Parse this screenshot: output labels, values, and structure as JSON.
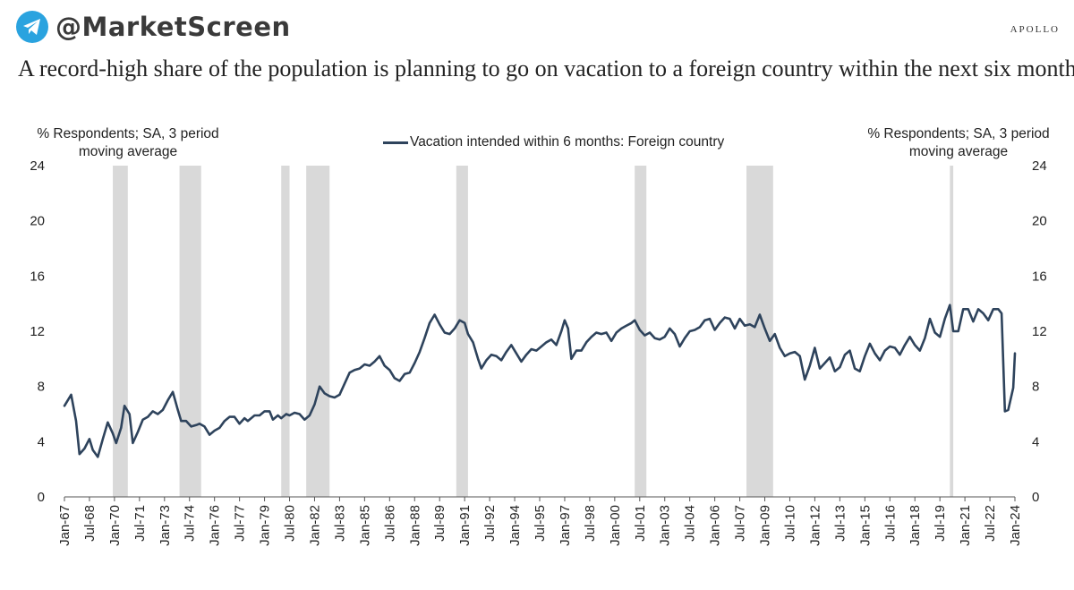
{
  "header": {
    "brand": "@MarketScreen",
    "brand_icon": "telegram-icon",
    "publisher": "APOLLO",
    "headline": "A record-high share of the population is planning to go on vacation to a foreign country within the next six months"
  },
  "colors": {
    "line": "#2e435c",
    "recession": "#d9d9d9",
    "brand_icon": "#2aa3df"
  },
  "chart_data": {
    "type": "line",
    "title": "A record-high share of the population is planning to go on vacation to a foreign country within the next six months",
    "left_axis_label": "% Respondents; SA, 3 period moving average",
    "right_axis_label": "% Respondents; SA, 3 period moving average",
    "ylim": [
      0,
      24
    ],
    "yticks": [
      0,
      4,
      8,
      12,
      16,
      20,
      24
    ],
    "x_range": [
      1967.0,
      2024.0
    ],
    "xtick_labels": [
      "Jan-67",
      "Jul-68",
      "Jan-70",
      "Jul-71",
      "Jan-73",
      "Jul-74",
      "Jan-76",
      "Jul-77",
      "Jan-79",
      "Jul-80",
      "Jan-82",
      "Jul-83",
      "Jan-85",
      "Jul-86",
      "Jan-88",
      "Jul-89",
      "Jan-91",
      "Jul-92",
      "Jan-94",
      "Jul-95",
      "Jan-97",
      "Jul-98",
      "Jan-00",
      "Jul-01",
      "Jan-03",
      "Jul-04",
      "Jan-06",
      "Jul-07",
      "Jan-09",
      "Jul-10",
      "Jan-12",
      "Jul-13",
      "Jan-15",
      "Jul-16",
      "Jan-18",
      "Jul-19",
      "Jan-21",
      "Jul-22",
      "Jan-24"
    ],
    "recessions": [
      [
        1969.9,
        1970.8
      ],
      [
        1973.9,
        1975.2
      ],
      [
        1980.0,
        1980.5
      ],
      [
        1981.5,
        1982.9
      ],
      [
        1990.5,
        1991.2
      ],
      [
        2001.2,
        2001.9
      ],
      [
        2007.9,
        2009.5
      ],
      [
        2020.1,
        2020.3
      ]
    ],
    "series": [
      {
        "name": "Vacation intended within 6 months: Foreign country",
        "points": [
          [
            1967.0,
            6.6
          ],
          [
            1967.4,
            7.4
          ],
          [
            1967.7,
            5.5
          ],
          [
            1967.9,
            3.1
          ],
          [
            1968.2,
            3.5
          ],
          [
            1968.5,
            4.2
          ],
          [
            1968.7,
            3.4
          ],
          [
            1969.0,
            2.9
          ],
          [
            1969.3,
            4.2
          ],
          [
            1969.6,
            5.4
          ],
          [
            1969.9,
            4.6
          ],
          [
            1970.1,
            3.9
          ],
          [
            1970.4,
            5.0
          ],
          [
            1970.6,
            6.6
          ],
          [
            1970.9,
            6.0
          ],
          [
            1971.1,
            3.9
          ],
          [
            1971.4,
            4.7
          ],
          [
            1971.7,
            5.6
          ],
          [
            1972.0,
            5.8
          ],
          [
            1972.3,
            6.2
          ],
          [
            1972.6,
            6.0
          ],
          [
            1972.9,
            6.3
          ],
          [
            1973.2,
            7.0
          ],
          [
            1973.5,
            7.6
          ],
          [
            1973.8,
            6.3
          ],
          [
            1974.0,
            5.5
          ],
          [
            1974.3,
            5.5
          ],
          [
            1974.6,
            5.1
          ],
          [
            1974.9,
            5.2
          ],
          [
            1975.1,
            5.3
          ],
          [
            1975.4,
            5.1
          ],
          [
            1975.7,
            4.5
          ],
          [
            1976.0,
            4.8
          ],
          [
            1976.3,
            5.0
          ],
          [
            1976.6,
            5.5
          ],
          [
            1976.9,
            5.8
          ],
          [
            1977.2,
            5.8
          ],
          [
            1977.5,
            5.3
          ],
          [
            1977.8,
            5.7
          ],
          [
            1978.0,
            5.5
          ],
          [
            1978.4,
            5.9
          ],
          [
            1978.7,
            5.9
          ],
          [
            1979.0,
            6.2
          ],
          [
            1979.3,
            6.2
          ],
          [
            1979.5,
            5.6
          ],
          [
            1979.8,
            5.9
          ],
          [
            1980.0,
            5.7
          ],
          [
            1980.3,
            6.0
          ],
          [
            1980.5,
            5.9
          ],
          [
            1980.8,
            6.1
          ],
          [
            1981.1,
            6.0
          ],
          [
            1981.4,
            5.6
          ],
          [
            1981.7,
            5.9
          ],
          [
            1982.0,
            6.7
          ],
          [
            1982.3,
            8.0
          ],
          [
            1982.6,
            7.5
          ],
          [
            1982.9,
            7.3
          ],
          [
            1983.2,
            7.2
          ],
          [
            1983.5,
            7.4
          ],
          [
            1983.8,
            8.2
          ],
          [
            1984.1,
            9.0
          ],
          [
            1984.4,
            9.2
          ],
          [
            1984.7,
            9.3
          ],
          [
            1985.0,
            9.6
          ],
          [
            1985.3,
            9.5
          ],
          [
            1985.6,
            9.8
          ],
          [
            1985.9,
            10.2
          ],
          [
            1986.2,
            9.5
          ],
          [
            1986.5,
            9.2
          ],
          [
            1986.8,
            8.6
          ],
          [
            1987.1,
            8.4
          ],
          [
            1987.4,
            8.9
          ],
          [
            1987.7,
            9.0
          ],
          [
            1988.0,
            9.7
          ],
          [
            1988.3,
            10.5
          ],
          [
            1988.6,
            11.5
          ],
          [
            1988.9,
            12.6
          ],
          [
            1989.2,
            13.2
          ],
          [
            1989.5,
            12.5
          ],
          [
            1989.8,
            11.9
          ],
          [
            1990.1,
            11.8
          ],
          [
            1990.4,
            12.2
          ],
          [
            1990.7,
            12.8
          ],
          [
            1991.0,
            12.6
          ],
          [
            1991.2,
            11.8
          ],
          [
            1991.5,
            11.2
          ],
          [
            1991.8,
            10.0
          ],
          [
            1992.0,
            9.3
          ],
          [
            1992.3,
            9.9
          ],
          [
            1992.6,
            10.3
          ],
          [
            1992.9,
            10.2
          ],
          [
            1993.2,
            9.9
          ],
          [
            1993.5,
            10.5
          ],
          [
            1993.8,
            11.0
          ],
          [
            1994.1,
            10.4
          ],
          [
            1994.4,
            9.8
          ],
          [
            1994.7,
            10.3
          ],
          [
            1995.0,
            10.7
          ],
          [
            1995.3,
            10.6
          ],
          [
            1995.6,
            10.9
          ],
          [
            1995.9,
            11.2
          ],
          [
            1996.2,
            11.4
          ],
          [
            1996.5,
            11.0
          ],
          [
            1996.8,
            12.0
          ],
          [
            1997.0,
            12.8
          ],
          [
            1997.2,
            12.2
          ],
          [
            1997.4,
            10.0
          ],
          [
            1997.7,
            10.6
          ],
          [
            1998.0,
            10.6
          ],
          [
            1998.3,
            11.2
          ],
          [
            1998.6,
            11.6
          ],
          [
            1998.9,
            11.9
          ],
          [
            1999.2,
            11.8
          ],
          [
            1999.5,
            11.9
          ],
          [
            1999.8,
            11.3
          ],
          [
            2000.1,
            11.9
          ],
          [
            2000.4,
            12.2
          ],
          [
            2000.7,
            12.4
          ],
          [
            2001.0,
            12.6
          ],
          [
            2001.2,
            12.8
          ],
          [
            2001.5,
            12.1
          ],
          [
            2001.8,
            11.7
          ],
          [
            2002.1,
            11.9
          ],
          [
            2002.4,
            11.5
          ],
          [
            2002.7,
            11.4
          ],
          [
            2003.0,
            11.6
          ],
          [
            2003.3,
            12.2
          ],
          [
            2003.6,
            11.8
          ],
          [
            2003.9,
            10.9
          ],
          [
            2004.2,
            11.5
          ],
          [
            2004.5,
            12.0
          ],
          [
            2004.8,
            12.1
          ],
          [
            2005.1,
            12.3
          ],
          [
            2005.4,
            12.8
          ],
          [
            2005.7,
            12.9
          ],
          [
            2006.0,
            12.1
          ],
          [
            2006.3,
            12.6
          ],
          [
            2006.6,
            13.0
          ],
          [
            2006.9,
            12.9
          ],
          [
            2007.2,
            12.2
          ],
          [
            2007.5,
            12.9
          ],
          [
            2007.8,
            12.4
          ],
          [
            2008.1,
            12.5
          ],
          [
            2008.4,
            12.3
          ],
          [
            2008.7,
            13.2
          ],
          [
            2009.0,
            12.2
          ],
          [
            2009.3,
            11.3
          ],
          [
            2009.6,
            11.8
          ],
          [
            2009.9,
            10.8
          ],
          [
            2010.2,
            10.2
          ],
          [
            2010.5,
            10.4
          ],
          [
            2010.8,
            10.5
          ],
          [
            2011.1,
            10.2
          ],
          [
            2011.4,
            8.5
          ],
          [
            2011.7,
            9.5
          ],
          [
            2012.0,
            10.8
          ],
          [
            2012.3,
            9.3
          ],
          [
            2012.6,
            9.7
          ],
          [
            2012.9,
            10.1
          ],
          [
            2013.2,
            9.1
          ],
          [
            2013.5,
            9.4
          ],
          [
            2013.8,
            10.3
          ],
          [
            2014.1,
            10.6
          ],
          [
            2014.4,
            9.3
          ],
          [
            2014.7,
            9.1
          ],
          [
            2015.0,
            10.2
          ],
          [
            2015.3,
            11.1
          ],
          [
            2015.6,
            10.4
          ],
          [
            2015.9,
            9.9
          ],
          [
            2016.2,
            10.6
          ],
          [
            2016.5,
            10.9
          ],
          [
            2016.8,
            10.8
          ],
          [
            2017.1,
            10.3
          ],
          [
            2017.4,
            11.0
          ],
          [
            2017.7,
            11.6
          ],
          [
            2018.0,
            11.0
          ],
          [
            2018.3,
            10.6
          ],
          [
            2018.6,
            11.5
          ],
          [
            2018.9,
            12.9
          ],
          [
            2019.2,
            11.9
          ],
          [
            2019.5,
            11.6
          ],
          [
            2019.8,
            12.9
          ],
          [
            2020.1,
            13.9
          ],
          [
            2020.3,
            12.0
          ],
          [
            2020.6,
            12.0
          ],
          [
            2020.9,
            13.6
          ],
          [
            2021.2,
            13.6
          ],
          [
            2021.5,
            12.7
          ],
          [
            2021.8,
            13.6
          ],
          [
            2022.1,
            13.3
          ],
          [
            2022.4,
            12.8
          ],
          [
            2022.7,
            13.6
          ],
          [
            2023.0,
            13.6
          ],
          [
            2023.2,
            13.3
          ],
          [
            2023.4,
            6.2
          ],
          [
            2023.6,
            6.3
          ],
          [
            2023.9,
            7.9
          ],
          [
            2024.0,
            10.4
          ]
        ]
      }
    ]
  }
}
